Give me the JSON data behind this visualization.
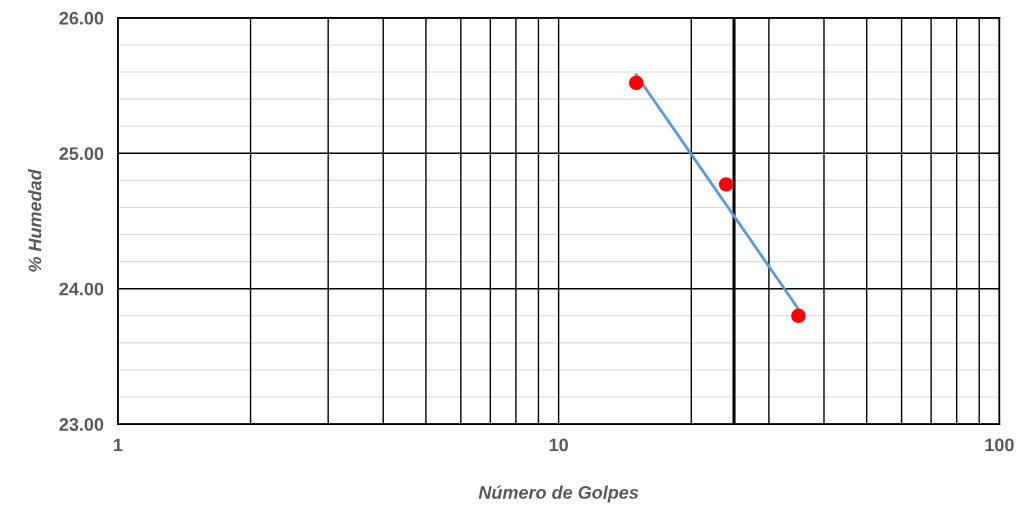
{
  "chart_data": {
    "type": "scatter",
    "xlabel": "Número de Golpes",
    "ylabel": "% Humedad",
    "log": "x",
    "grid": true,
    "legend": false,
    "xlim": [
      1,
      100
    ],
    "xticks": [
      1,
      10,
      100
    ],
    "ylim": [
      23,
      26
    ],
    "yticks": [
      {
        "value": 23,
        "label": "23.00"
      },
      {
        "value": 24,
        "label": "24.00"
      },
      {
        "value": 25,
        "label": "25.00"
      },
      {
        "value": 26,
        "label": "26.00"
      }
    ],
    "series": [
      {
        "marker": "circle",
        "color": "#ff0000",
        "x": [
          15,
          24,
          35
        ],
        "values": [
          25.52,
          24.77,
          23.8
        ]
      },
      {
        "type": "line",
        "color": "#5b9bd5",
        "x": [
          15,
          35
        ],
        "values": [
          25.58,
          23.85
        ],
        "marker": "none"
      }
    ],
    "ref_lines": [
      {
        "axis": "x",
        "value": 25,
        "color": "#000000"
      }
    ]
  }
}
